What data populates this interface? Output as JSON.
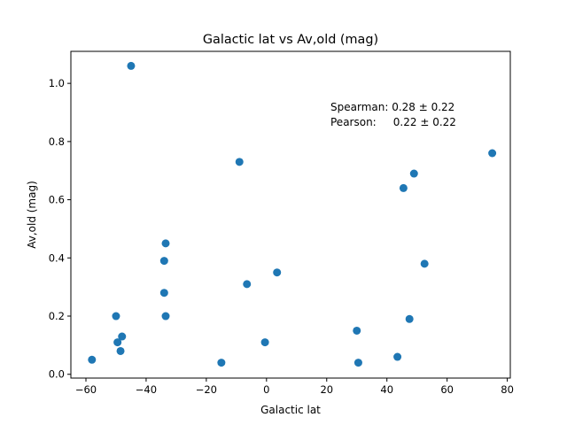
{
  "chart_data": {
    "type": "scatter",
    "title": "Galactic lat vs Av,old (mag)",
    "xlabel": "Galactic lat",
    "ylabel": "Av,old (mag)",
    "xlim": [
      -65,
      81
    ],
    "ylim": [
      -0.013,
      1.11
    ],
    "xticks": [
      -60,
      -40,
      -20,
      0,
      20,
      40,
      60,
      80
    ],
    "yticks": [
      0.0,
      0.2,
      0.4,
      0.6,
      0.8,
      1.0
    ],
    "xtick_labels": [
      "−60",
      "−40",
      "−20",
      "0",
      "20",
      "40",
      "60",
      "80"
    ],
    "ytick_labels": [
      "0.0",
      "0.2",
      "0.4",
      "0.6",
      "0.8",
      "1.0"
    ],
    "grid": false,
    "marker_color": "#1f77b4",
    "annotations": [
      "Spearman: 0.28 ± 0.22",
      "Pearson:     0.22 ± 0.22"
    ],
    "points": [
      {
        "x": -45,
        "y": 1.06
      },
      {
        "x": -9,
        "y": 0.73
      },
      {
        "x": 75,
        "y": 0.76
      },
      {
        "x": 49,
        "y": 0.69
      },
      {
        "x": 45.5,
        "y": 0.64
      },
      {
        "x": -33.5,
        "y": 0.45
      },
      {
        "x": -34,
        "y": 0.39
      },
      {
        "x": 52.5,
        "y": 0.38
      },
      {
        "x": 3.5,
        "y": 0.35
      },
      {
        "x": -6.5,
        "y": 0.31
      },
      {
        "x": -34,
        "y": 0.28
      },
      {
        "x": -50,
        "y": 0.2
      },
      {
        "x": -33.5,
        "y": 0.2
      },
      {
        "x": 47.5,
        "y": 0.19
      },
      {
        "x": 30,
        "y": 0.15
      },
      {
        "x": -48,
        "y": 0.13
      },
      {
        "x": -49.5,
        "y": 0.11
      },
      {
        "x": -0.5,
        "y": 0.11
      },
      {
        "x": -48.5,
        "y": 0.08
      },
      {
        "x": 43.5,
        "y": 0.06
      },
      {
        "x": -58,
        "y": 0.05
      },
      {
        "x": -15,
        "y": 0.04
      },
      {
        "x": 30.5,
        "y": 0.04
      }
    ]
  }
}
